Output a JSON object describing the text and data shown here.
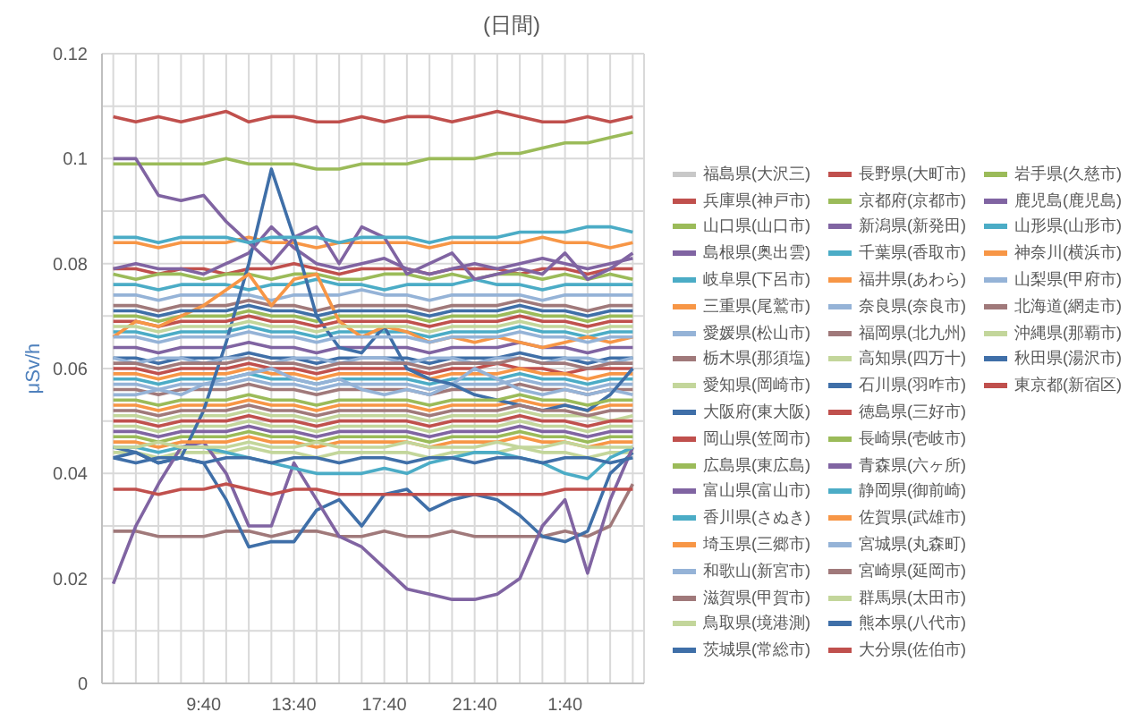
{
  "chart_data": {
    "type": "line",
    "title": "(日間)",
    "ylabel": "μSv/h",
    "grid": true,
    "legend": "right",
    "marker": "none",
    "categories": [
      null,
      null,
      null,
      null,
      "9:40",
      null,
      null,
      null,
      "13:40",
      null,
      null,
      null,
      "17:40",
      null,
      null,
      null,
      "21:40",
      null,
      null,
      null,
      "1:40",
      null,
      null,
      null
    ],
    "ylim": [
      0,
      0.12
    ],
    "yticks": [
      0,
      {
        "value": 0.01,
        "label": null
      },
      0.02,
      {
        "value": 0.03,
        "label": null
      },
      0.04,
      {
        "value": 0.05,
        "label": null
      },
      0.06,
      {
        "value": 0.07,
        "label": null
      },
      0.08,
      {
        "value": 0.09,
        "label": null
      },
      0.1,
      {
        "value": 0.11,
        "label": null
      },
      0.12
    ],
    "series": [
      {
        "name": "福島県(大沢三)",
        "color": "#c8c8c8",
        "values": [
          null,
          null,
          null,
          null,
          null,
          null,
          null,
          null,
          null,
          null,
          null,
          null,
          null,
          null,
          null,
          null,
          null,
          null,
          null,
          null,
          null,
          null,
          null,
          null
        ]
      },
      {
        "name": "兵庫県(神戸市)",
        "color": "#c0504d",
        "values": [
          0.079,
          0.079,
          0.078,
          0.079,
          0.079,
          0.078,
          0.079,
          0.079,
          0.08,
          0.079,
          0.078,
          0.079,
          0.079,
          0.079,
          0.078,
          0.079,
          0.079,
          0.079,
          0.078,
          0.079,
          0.079,
          0.078,
          0.079,
          0.079
        ]
      },
      {
        "name": "山口県(山口市)",
        "color": "#9bbb59",
        "values": [
          0.078,
          0.077,
          0.078,
          0.078,
          0.077,
          0.078,
          0.078,
          0.077,
          0.078,
          0.078,
          0.077,
          0.077,
          0.078,
          0.078,
          0.077,
          0.078,
          0.077,
          0.078,
          0.078,
          0.077,
          0.078,
          0.077,
          0.078,
          0.077
        ]
      },
      {
        "name": "島根県(奥出雲)",
        "color": "#8064a2",
        "values": [
          0.079,
          0.08,
          0.079,
          0.079,
          0.078,
          0.08,
          0.082,
          0.087,
          0.083,
          0.08,
          0.079,
          0.08,
          0.081,
          0.079,
          0.078,
          0.079,
          0.08,
          0.079,
          0.08,
          0.081,
          0.08,
          0.079,
          0.08,
          0.081
        ]
      },
      {
        "name": "岐阜県(下呂市)",
        "color": "#4bacc6",
        "values": [
          0.076,
          0.076,
          0.075,
          0.076,
          0.076,
          0.076,
          0.075,
          0.076,
          0.076,
          0.077,
          0.076,
          0.076,
          0.075,
          0.076,
          0.076,
          0.076,
          0.077,
          0.076,
          0.076,
          0.075,
          0.076,
          0.076,
          0.076,
          0.076
        ]
      },
      {
        "name": "三重県(尾鷲市)",
        "color": "#f79646",
        "values": [
          0.084,
          0.084,
          0.083,
          0.084,
          0.084,
          0.084,
          0.085,
          0.084,
          0.084,
          0.083,
          0.084,
          0.084,
          0.084,
          0.084,
          0.083,
          0.084,
          0.084,
          0.084,
          0.084,
          0.085,
          0.084,
          0.084,
          0.083,
          0.084
        ]
      },
      {
        "name": "愛媛県(松山市)",
        "color": "#95b3d7",
        "values": [
          0.074,
          0.074,
          0.073,
          0.074,
          0.074,
          0.074,
          0.074,
          0.073,
          0.074,
          0.074,
          0.074,
          0.075,
          0.074,
          0.074,
          0.073,
          0.074,
          0.074,
          0.074,
          0.074,
          0.073,
          0.074,
          0.074,
          0.074,
          0.074
        ]
      },
      {
        "name": "栃木県(那須塩)",
        "color": "#a0797a",
        "values": [
          0.029,
          0.029,
          0.028,
          0.028,
          0.028,
          0.029,
          0.029,
          0.028,
          0.029,
          0.029,
          0.028,
          0.028,
          0.029,
          0.028,
          0.028,
          0.029,
          0.028,
          0.028,
          0.028,
          0.028,
          0.029,
          0.028,
          0.03,
          0.038
        ]
      },
      {
        "name": "愛知県(岡崎市)",
        "color": "#c3d69b",
        "values": [
          0.051,
          0.051,
          0.05,
          0.051,
          0.051,
          0.051,
          0.052,
          0.051,
          0.051,
          0.05,
          0.051,
          0.051,
          0.051,
          0.051,
          0.05,
          0.051,
          0.051,
          0.051,
          0.052,
          0.051,
          0.051,
          0.051,
          0.05,
          0.051
        ]
      },
      {
        "name": "大阪府(東大阪)",
        "color": "#3f6fa8",
        "values": [
          0.062,
          0.062,
          0.061,
          0.062,
          0.062,
          0.062,
          0.063,
          0.062,
          0.062,
          0.061,
          0.062,
          0.062,
          0.062,
          0.062,
          0.061,
          0.062,
          0.062,
          0.062,
          0.063,
          0.062,
          0.062,
          0.061,
          0.062,
          0.062
        ]
      },
      {
        "name": "岡山県(笠岡市)",
        "color": "#c0504d",
        "values": [
          0.06,
          0.06,
          0.059,
          0.06,
          0.06,
          0.06,
          0.061,
          0.06,
          0.06,
          0.059,
          0.06,
          0.06,
          0.06,
          0.06,
          0.059,
          0.06,
          0.06,
          0.061,
          0.06,
          0.06,
          0.059,
          0.06,
          0.06,
          0.06
        ]
      },
      {
        "name": "広島県(東広島)",
        "color": "#9bbb59",
        "values": [
          0.07,
          0.07,
          0.069,
          0.07,
          0.07,
          0.07,
          0.071,
          0.07,
          0.07,
          0.069,
          0.07,
          0.07,
          0.07,
          0.07,
          0.069,
          0.07,
          0.07,
          0.07,
          0.071,
          0.07,
          0.07,
          0.069,
          0.07,
          0.07
        ]
      },
      {
        "name": "富山県(富山市)",
        "color": "#8064a2",
        "values": [
          0.064,
          0.064,
          0.063,
          0.064,
          0.064,
          0.064,
          0.065,
          0.064,
          0.064,
          0.063,
          0.064,
          0.064,
          0.064,
          0.064,
          0.063,
          0.064,
          0.064,
          0.064,
          0.065,
          0.064,
          0.064,
          0.063,
          0.064,
          0.064
        ]
      },
      {
        "name": "香川県(さぬき)",
        "color": "#4bacc6",
        "values": [
          0.058,
          0.058,
          0.057,
          0.058,
          0.058,
          0.058,
          0.059,
          0.058,
          0.058,
          0.057,
          0.058,
          0.058,
          0.058,
          0.058,
          0.057,
          0.058,
          0.058,
          0.058,
          0.059,
          0.058,
          0.058,
          0.057,
          0.058,
          0.058
        ]
      },
      {
        "name": "埼玉県(三郷市)",
        "color": "#f79646",
        "values": [
          0.059,
          0.059,
          0.058,
          0.059,
          0.059,
          0.059,
          0.06,
          0.059,
          0.059,
          0.058,
          0.059,
          0.059,
          0.059,
          0.059,
          0.058,
          0.059,
          0.059,
          0.059,
          0.06,
          0.059,
          0.059,
          0.058,
          0.059,
          0.059
        ]
      },
      {
        "name": "和歌山(新宮市)",
        "color": "#95b3d7",
        "values": [
          0.057,
          0.057,
          0.056,
          0.057,
          0.057,
          0.057,
          0.058,
          0.057,
          0.057,
          0.056,
          0.057,
          0.057,
          0.057,
          0.057,
          0.056,
          0.057,
          0.057,
          0.057,
          0.058,
          0.057,
          0.057,
          0.056,
          0.057,
          0.057
        ]
      },
      {
        "name": "滋賀県(甲賀市)",
        "color": "#a0797a",
        "values": [
          0.056,
          0.056,
          0.055,
          0.056,
          0.056,
          0.056,
          0.057,
          0.056,
          0.056,
          0.055,
          0.056,
          0.056,
          0.056,
          0.056,
          0.055,
          0.056,
          0.056,
          0.056,
          0.057,
          0.056,
          0.056,
          0.055,
          0.056,
          0.056
        ]
      },
      {
        "name": "鳥取県(境港測)",
        "color": "#c3d69b",
        "values": [
          0.044,
          0.044,
          0.043,
          0.044,
          0.044,
          0.044,
          0.045,
          0.044,
          0.044,
          0.043,
          0.044,
          0.044,
          0.044,
          0.044,
          0.043,
          0.044,
          0.044,
          0.044,
          0.045,
          0.044,
          0.044,
          0.043,
          0.044,
          0.044
        ]
      },
      {
        "name": "茨城県(常総市)",
        "color": "#3f6fa8",
        "values": [
          0.043,
          0.044,
          0.042,
          0.043,
          0.042,
          0.035,
          0.026,
          0.027,
          0.027,
          0.033,
          0.035,
          0.03,
          0.036,
          0.037,
          0.033,
          0.035,
          0.036,
          0.035,
          0.032,
          0.028,
          0.027,
          0.029,
          0.04,
          0.044
        ]
      },
      {
        "name": "長野県(大町市)",
        "color": "#c0504d",
        "values": [
          0.108,
          0.107,
          0.108,
          0.107,
          0.108,
          0.109,
          0.107,
          0.108,
          0.108,
          0.107,
          0.107,
          0.108,
          0.107,
          0.108,
          0.108,
          0.107,
          0.108,
          0.109,
          0.108,
          0.107,
          0.107,
          0.108,
          0.107,
          0.108
        ]
      },
      {
        "name": "京都府(京都市)",
        "color": "#9bbb59",
        "values": [
          0.047,
          0.047,
          0.046,
          0.047,
          0.047,
          0.047,
          0.048,
          0.047,
          0.047,
          0.046,
          0.047,
          0.047,
          0.047,
          0.047,
          0.046,
          0.047,
          0.047,
          0.047,
          0.048,
          0.047,
          0.047,
          0.046,
          0.047,
          0.047
        ]
      },
      {
        "name": "新潟県(新発田)",
        "color": "#8064a2",
        "values": [
          0.048,
          0.048,
          0.047,
          0.048,
          0.048,
          0.048,
          0.049,
          0.048,
          0.048,
          0.047,
          0.048,
          0.048,
          0.048,
          0.048,
          0.047,
          0.048,
          0.048,
          0.048,
          0.049,
          0.048,
          0.048,
          0.047,
          0.048,
          0.048
        ]
      },
      {
        "name": "千葉県(香取市)",
        "color": "#4bacc6",
        "values": [
          0.067,
          0.067,
          0.066,
          0.067,
          0.067,
          0.067,
          0.068,
          0.067,
          0.067,
          0.066,
          0.067,
          0.067,
          0.067,
          0.067,
          0.066,
          0.067,
          0.067,
          0.067,
          0.068,
          0.067,
          0.067,
          0.066,
          0.067,
          0.067
        ]
      },
      {
        "name": "福井県(あわら)",
        "color": "#f79646",
        "values": [
          0.053,
          0.053,
          0.052,
          0.053,
          0.053,
          0.053,
          0.054,
          0.053,
          0.053,
          0.052,
          0.053,
          0.053,
          0.053,
          0.053,
          0.052,
          0.053,
          0.053,
          0.053,
          0.054,
          0.053,
          0.053,
          0.052,
          0.053,
          0.053
        ]
      },
      {
        "name": "奈良県(奈良市)",
        "color": "#95b3d7",
        "values": [
          0.055,
          0.055,
          0.056,
          0.055,
          0.057,
          0.058,
          0.059,
          0.06,
          0.058,
          0.057,
          0.058,
          0.056,
          0.055,
          0.056,
          0.055,
          0.057,
          0.06,
          0.058,
          0.056,
          0.055,
          0.056,
          0.055,
          0.056,
          0.055
        ]
      },
      {
        "name": "福岡県(北九州)",
        "color": "#a0797a",
        "values": [
          0.072,
          0.072,
          0.071,
          0.072,
          0.072,
          0.072,
          0.073,
          0.072,
          0.072,
          0.071,
          0.072,
          0.072,
          0.072,
          0.072,
          0.071,
          0.072,
          0.072,
          0.072,
          0.073,
          0.072,
          0.072,
          0.071,
          0.072,
          0.072
        ]
      },
      {
        "name": "高知県(四万十)",
        "color": "#c3d69b",
        "values": [
          0.049,
          0.049,
          0.048,
          0.049,
          0.049,
          0.049,
          0.05,
          0.049,
          0.049,
          0.048,
          0.049,
          0.049,
          0.049,
          0.049,
          0.048,
          0.049,
          0.049,
          0.049,
          0.05,
          0.049,
          0.049,
          0.048,
          0.049,
          0.049
        ]
      },
      {
        "name": "石川県(羽咋市)",
        "color": "#3f6fa8",
        "values": [
          0.045,
          0.044,
          0.042,
          0.043,
          0.052,
          0.065,
          0.08,
          0.098,
          0.085,
          0.07,
          0.064,
          0.063,
          0.068,
          0.06,
          0.058,
          0.057,
          0.055,
          0.054,
          0.053,
          0.052,
          0.053,
          0.052,
          0.055,
          0.06
        ]
      },
      {
        "name": "徳島県(三好市)",
        "color": "#c0504d",
        "values": [
          0.05,
          0.05,
          0.049,
          0.05,
          0.05,
          0.05,
          0.051,
          0.05,
          0.05,
          0.049,
          0.05,
          0.05,
          0.05,
          0.05,
          0.049,
          0.05,
          0.05,
          0.05,
          0.051,
          0.05,
          0.05,
          0.049,
          0.05,
          0.05
        ]
      },
      {
        "name": "長崎県(壱岐市)",
        "color": "#9bbb59",
        "values": [
          0.054,
          0.054,
          0.053,
          0.054,
          0.054,
          0.054,
          0.055,
          0.054,
          0.054,
          0.053,
          0.054,
          0.054,
          0.054,
          0.054,
          0.053,
          0.054,
          0.054,
          0.054,
          0.055,
          0.054,
          0.054,
          0.053,
          0.054,
          0.054
        ]
      },
      {
        "name": "青森県(六ヶ所)",
        "color": "#8064a2",
        "values": [
          0.019,
          0.03,
          0.038,
          0.045,
          0.046,
          0.04,
          0.03,
          0.03,
          0.042,
          0.035,
          0.028,
          0.026,
          0.022,
          0.018,
          0.017,
          0.016,
          0.016,
          0.017,
          0.02,
          0.03,
          0.035,
          0.021,
          0.035,
          0.045
        ]
      },
      {
        "name": "静岡県(御前崎)",
        "color": "#4bacc6",
        "values": [
          0.045,
          0.045,
          0.044,
          0.045,
          0.045,
          0.044,
          0.043,
          0.042,
          0.041,
          0.04,
          0.04,
          0.04,
          0.041,
          0.04,
          0.042,
          0.043,
          0.044,
          0.044,
          0.043,
          0.042,
          0.04,
          0.039,
          0.043,
          0.045
        ]
      },
      {
        "name": "佐賀県(武雄市)",
        "color": "#f79646",
        "values": [
          0.046,
          0.046,
          0.045,
          0.046,
          0.046,
          0.046,
          0.047,
          0.046,
          0.046,
          0.045,
          0.046,
          0.046,
          0.046,
          0.046,
          0.045,
          0.046,
          0.046,
          0.046,
          0.047,
          0.046,
          0.046,
          0.045,
          0.046,
          0.046
        ]
      },
      {
        "name": "宮城県(丸森町)",
        "color": "#95b3d7",
        "values": [
          0.062,
          0.061,
          0.062,
          0.062,
          0.061,
          0.062,
          0.062,
          0.061,
          0.062,
          0.062,
          0.061,
          0.062,
          0.062,
          0.061,
          0.062,
          0.062,
          0.061,
          0.062,
          0.062,
          0.061,
          0.062,
          0.062,
          0.061,
          0.062
        ]
      },
      {
        "name": "宮崎県(延岡市)",
        "color": "#a0797a",
        "values": [
          0.061,
          0.061,
          0.06,
          0.061,
          0.061,
          0.061,
          0.062,
          0.061,
          0.061,
          0.06,
          0.061,
          0.061,
          0.061,
          0.061,
          0.06,
          0.061,
          0.061,
          0.061,
          0.062,
          0.061,
          0.061,
          0.06,
          0.061,
          0.061
        ]
      },
      {
        "name": "群馬県(太田市)",
        "color": "#c3d69b",
        "values": [
          0.045,
          0.045,
          0.046,
          0.045,
          0.045,
          0.045,
          0.046,
          0.045,
          0.045,
          0.046,
          0.045,
          0.045,
          0.045,
          0.046,
          0.045,
          0.045,
          0.045,
          0.046,
          0.045,
          0.045,
          0.046,
          0.045,
          0.045,
          0.045
        ]
      },
      {
        "name": "熊本県(八代市)",
        "color": "#3f6fa8",
        "values": [
          0.043,
          0.042,
          0.043,
          0.043,
          0.042,
          0.043,
          0.043,
          0.042,
          0.043,
          0.043,
          0.042,
          0.043,
          0.043,
          0.042,
          0.043,
          0.043,
          0.042,
          0.043,
          0.043,
          0.042,
          0.043,
          0.043,
          0.042,
          0.043
        ]
      },
      {
        "name": "大分県(佐伯市)",
        "color": "#c0504d",
        "values": [
          0.069,
          0.069,
          0.068,
          0.069,
          0.069,
          0.069,
          0.07,
          0.069,
          0.069,
          0.068,
          0.069,
          0.069,
          0.069,
          0.069,
          0.068,
          0.069,
          0.069,
          0.069,
          0.07,
          0.069,
          0.069,
          0.068,
          0.069,
          0.069
        ]
      },
      {
        "name": "岩手県(久慈市)",
        "color": "#9bbb59",
        "values": [
          0.099,
          0.099,
          0.099,
          0.099,
          0.099,
          0.1,
          0.099,
          0.099,
          0.099,
          0.098,
          0.098,
          0.099,
          0.099,
          0.099,
          0.1,
          0.1,
          0.1,
          0.101,
          0.101,
          0.102,
          0.103,
          0.103,
          0.104,
          0.105
        ]
      },
      {
        "name": "鹿児島(鹿児島)",
        "color": "#8064a2",
        "values": [
          0.1,
          0.1,
          0.093,
          0.092,
          0.093,
          0.088,
          0.084,
          0.08,
          0.085,
          0.087,
          0.08,
          0.087,
          0.085,
          0.078,
          0.08,
          0.082,
          0.077,
          0.078,
          0.079,
          0.078,
          0.082,
          0.077,
          0.079,
          0.082
        ]
      },
      {
        "name": "山形県(山形市)",
        "color": "#4bacc6",
        "values": [
          0.085,
          0.085,
          0.084,
          0.085,
          0.085,
          0.085,
          0.084,
          0.085,
          0.085,
          0.085,
          0.084,
          0.085,
          0.085,
          0.085,
          0.084,
          0.085,
          0.085,
          0.085,
          0.086,
          0.086,
          0.086,
          0.087,
          0.087,
          0.086
        ]
      },
      {
        "name": "神奈川(横浜市)",
        "color": "#f79646",
        "values": [
          0.066,
          0.069,
          0.068,
          0.07,
          0.072,
          0.075,
          0.078,
          0.072,
          0.077,
          0.078,
          0.069,
          0.066,
          0.068,
          0.067,
          0.065,
          0.066,
          0.065,
          0.066,
          0.065,
          0.064,
          0.065,
          0.066,
          0.065,
          0.066
        ]
      },
      {
        "name": "山梨県(甲府市)",
        "color": "#95b3d7",
        "values": [
          0.066,
          0.066,
          0.065,
          0.066,
          0.066,
          0.066,
          0.067,
          0.066,
          0.066,
          0.065,
          0.066,
          0.066,
          0.066,
          0.066,
          0.065,
          0.066,
          0.066,
          0.066,
          0.067,
          0.066,
          0.066,
          0.065,
          0.066,
          0.066
        ]
      },
      {
        "name": "北海道(網走市)",
        "color": "#a0797a",
        "values": [
          0.052,
          0.052,
          0.051,
          0.052,
          0.052,
          0.052,
          0.053,
          0.052,
          0.052,
          0.051,
          0.052,
          0.052,
          0.052,
          0.052,
          0.051,
          0.052,
          0.052,
          0.052,
          0.053,
          0.052,
          0.052,
          0.051,
          0.052,
          0.052
        ]
      },
      {
        "name": "沖縄県(那覇市)",
        "color": "#c3d69b",
        "values": [
          0.068,
          0.068,
          0.067,
          0.068,
          0.068,
          0.068,
          0.069,
          0.068,
          0.068,
          0.067,
          0.068,
          0.068,
          0.068,
          0.068,
          0.067,
          0.068,
          0.068,
          0.068,
          0.069,
          0.068,
          0.068,
          0.067,
          0.068,
          0.068
        ]
      },
      {
        "name": "秋田県(湯沢市)",
        "color": "#3f6fa8",
        "values": [
          0.071,
          0.071,
          0.07,
          0.071,
          0.071,
          0.071,
          0.072,
          0.071,
          0.071,
          0.07,
          0.071,
          0.071,
          0.071,
          0.071,
          0.07,
          0.071,
          0.071,
          0.071,
          0.072,
          0.071,
          0.071,
          0.07,
          0.071,
          0.071
        ]
      },
      {
        "name": "東京都(新宿区)",
        "color": "#c0504d",
        "values": [
          0.037,
          0.037,
          0.036,
          0.037,
          0.037,
          0.038,
          0.037,
          0.036,
          0.037,
          0.037,
          0.036,
          0.036,
          0.036,
          0.036,
          0.036,
          0.036,
          0.036,
          0.036,
          0.036,
          0.036,
          0.037,
          0.037,
          0.037,
          0.037
        ]
      }
    ]
  }
}
